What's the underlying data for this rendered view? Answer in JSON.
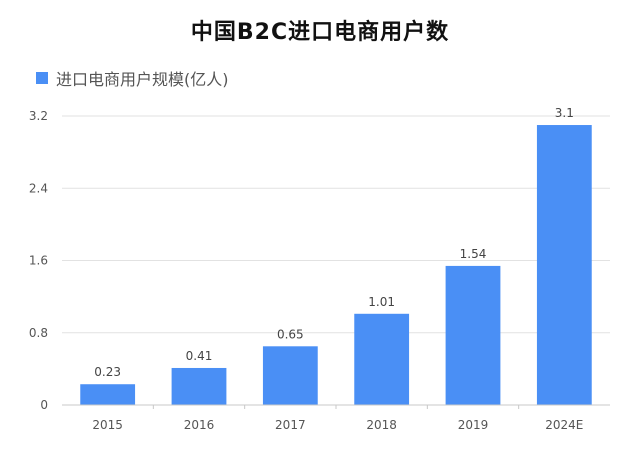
{
  "chart_data": {
    "type": "bar",
    "title": "中国B2C进口电商用户数",
    "xlabel": "",
    "ylabel": "",
    "categories": [
      "2015",
      "2016",
      "2017",
      "2018",
      "2019",
      "2024E"
    ],
    "series": [
      {
        "name": "进口电商用户规模(亿人)",
        "values": [
          0.23,
          0.41,
          0.65,
          1.01,
          1.54,
          3.1
        ]
      }
    ],
    "data_labels": [
      "0.23",
      "0.41",
      "0.65",
      "1.01",
      "1.54",
      "3.1"
    ],
    "ylim": [
      0,
      3.2
    ],
    "yticks": [
      "0",
      "0.8",
      "1.6",
      "2.4",
      "3.2"
    ],
    "grid": true,
    "legend_position": "top-left",
    "bar_color": "#4a8ff5"
  }
}
